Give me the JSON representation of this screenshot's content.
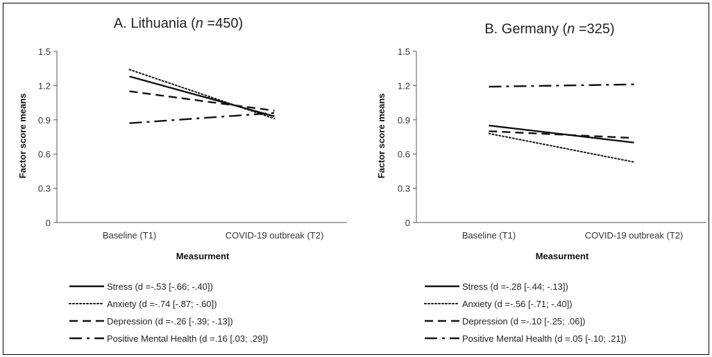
{
  "chart_data": [
    {
      "type": "line",
      "title_prefix": "A. Lithuania (",
      "title_n": "n",
      "title_suffix": " =450)",
      "xlabel": "Measurment",
      "ylabel": "Factor score means",
      "categories": [
        "Baseline (T1)",
        "COVID-19 outbreak (T2)"
      ],
      "ylim": [
        0,
        1.5
      ],
      "yticks": [
        "0",
        "0.3",
        "0.6",
        "0.9",
        "1.2",
        "1.5"
      ],
      "grid": false,
      "legend_position": "bottom",
      "series": [
        {
          "name": "Stress (d =-.53 [-.66; -.40])",
          "style": "solid",
          "values": [
            1.28,
            0.93
          ]
        },
        {
          "name": "Anxiety (d =-.74 [-.87; -.60])",
          "style": "dotted",
          "values": [
            1.34,
            0.91
          ]
        },
        {
          "name": "Depression (d =-.26 [-.39; -.13])",
          "style": "dashed",
          "values": [
            1.15,
            0.98
          ]
        },
        {
          "name": "Positive Mental Health (d =.16 [.03; .29])",
          "style": "dashdot",
          "values": [
            0.87,
            0.96
          ]
        }
      ]
    },
    {
      "type": "line",
      "title_prefix": "B. Germany (",
      "title_n": "n",
      "title_suffix": " =325)",
      "xlabel": "Measurment",
      "ylabel": "Factor score means",
      "categories": [
        "Baseline (T1)",
        "COVID-19 outbreak (T2)"
      ],
      "ylim": [
        0,
        1.5
      ],
      "yticks": [
        "0",
        "0.3",
        "0.6",
        "0.9",
        "1.2",
        "1.5"
      ],
      "grid": false,
      "legend_position": "bottom",
      "series": [
        {
          "name": "Stress (d =-.28 [-.44; -.13])",
          "style": "solid",
          "values": [
            0.85,
            0.7
          ]
        },
        {
          "name": "Anxiety (d =-.56 [-.71; -.40])",
          "style": "dotted",
          "values": [
            0.78,
            0.53
          ]
        },
        {
          "name": "Depression (d =-.10 [-.25; .06])",
          "style": "dashed",
          "values": [
            0.8,
            0.74
          ]
        },
        {
          "name": "Positive Mental Health (d =.05 [-.10; .21])",
          "style": "dashdot",
          "values": [
            1.19,
            1.21
          ]
        }
      ]
    }
  ]
}
